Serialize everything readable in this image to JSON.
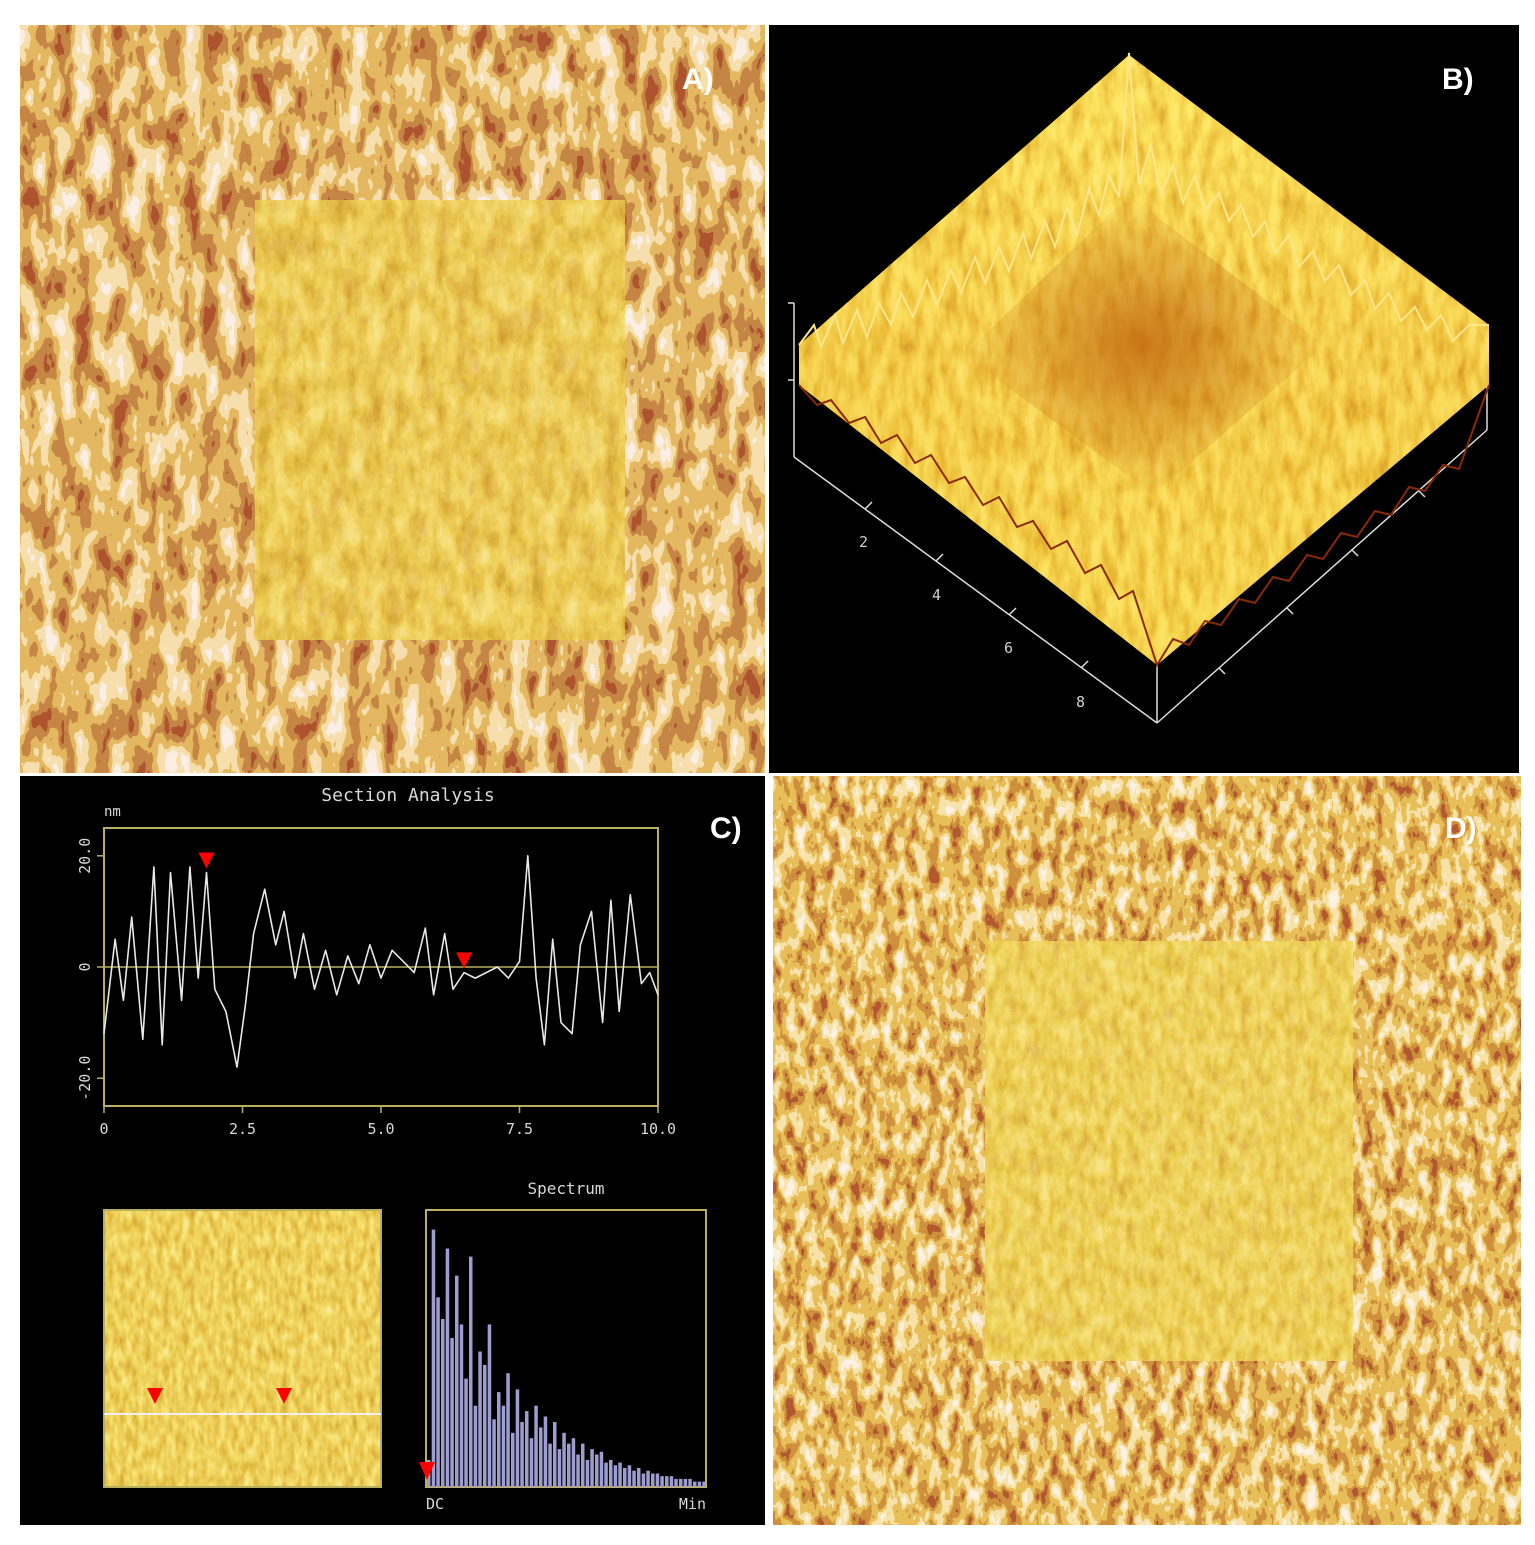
{
  "figure": {
    "panel_labels": {
      "a": "A)",
      "b": "B)",
      "c": "C)",
      "d": "D)"
    }
  },
  "panel_b": {
    "axis_ticks": [
      "2",
      "4",
      "6",
      "8"
    ]
  },
  "panel_c": {
    "section_title": "Section Analysis",
    "y_unit": "nm",
    "spectrum_title": "Spectrum",
    "spectrum_x_labels": {
      "left": "DC",
      "right": "Min"
    }
  },
  "colors": {
    "afm_dark": "#6b1808",
    "afm_mid": "#c77a1f",
    "afm_light": "#f6dcc8",
    "afm_yellow": "#d9b21c",
    "plot_frame": "#b8b060",
    "profile_line": "#e8e8e8",
    "marker": "#ff0000",
    "spectrum_bar": "#9d9dcf"
  },
  "chart_data": [
    {
      "type": "line",
      "title": "Section Analysis",
      "ylabel": "nm",
      "xlim": [
        0,
        10
      ],
      "ylim": [
        -25,
        25
      ],
      "x_ticks": [
        "0",
        "2.5",
        "5.0",
        "7.5",
        "10.0"
      ],
      "y_ticks": [
        "20.0",
        "0",
        "-20.0"
      ],
      "markers_x": [
        1.85,
        6.5
      ],
      "x": [
        0,
        0.2,
        0.35,
        0.5,
        0.7,
        0.9,
        1.05,
        1.2,
        1.4,
        1.55,
        1.7,
        1.85,
        2.0,
        2.2,
        2.4,
        2.55,
        2.7,
        2.9,
        3.1,
        3.25,
        3.45,
        3.6,
        3.8,
        4.0,
        4.2,
        4.4,
        4.6,
        4.8,
        5.0,
        5.2,
        5.4,
        5.6,
        5.8,
        5.95,
        6.15,
        6.3,
        6.5,
        6.7,
        6.9,
        7.1,
        7.3,
        7.5,
        7.65,
        7.8,
        7.95,
        8.1,
        8.25,
        8.45,
        8.6,
        8.8,
        9.0,
        9.15,
        9.3,
        9.5,
        9.7,
        9.85,
        10.0
      ],
      "y": [
        -12,
        5,
        -6,
        9,
        -13,
        18,
        -14,
        17,
        -6,
        18,
        -2,
        17,
        -4,
        -8,
        -18,
        -7,
        6,
        14,
        4,
        10,
        -2,
        6,
        -4,
        3,
        -5,
        2,
        -3,
        4,
        -2,
        3,
        1,
        -1,
        7,
        -5,
        6,
        -4,
        -1,
        -2,
        -1,
        0,
        -2,
        1,
        20,
        -2,
        -14,
        5,
        -10,
        -12,
        4,
        10,
        -10,
        12,
        -8,
        13,
        -3,
        -1,
        -5
      ]
    },
    {
      "type": "bar",
      "title": "Spectrum",
      "x_labels": [
        "DC",
        "Min"
      ],
      "ylim": [
        0,
        100
      ],
      "values": [
        10,
        95,
        70,
        62,
        88,
        55,
        78,
        60,
        40,
        85,
        30,
        50,
        45,
        60,
        25,
        35,
        30,
        42,
        20,
        36,
        24,
        28,
        18,
        30,
        22,
        26,
        16,
        24,
        14,
        20,
        16,
        18,
        12,
        16,
        10,
        14,
        12,
        13,
        9,
        10,
        8,
        9,
        7,
        8,
        6,
        7,
        5,
        6,
        5,
        5,
        4,
        4,
        4,
        3,
        3,
        3,
        3,
        2,
        2,
        2
      ]
    }
  ]
}
